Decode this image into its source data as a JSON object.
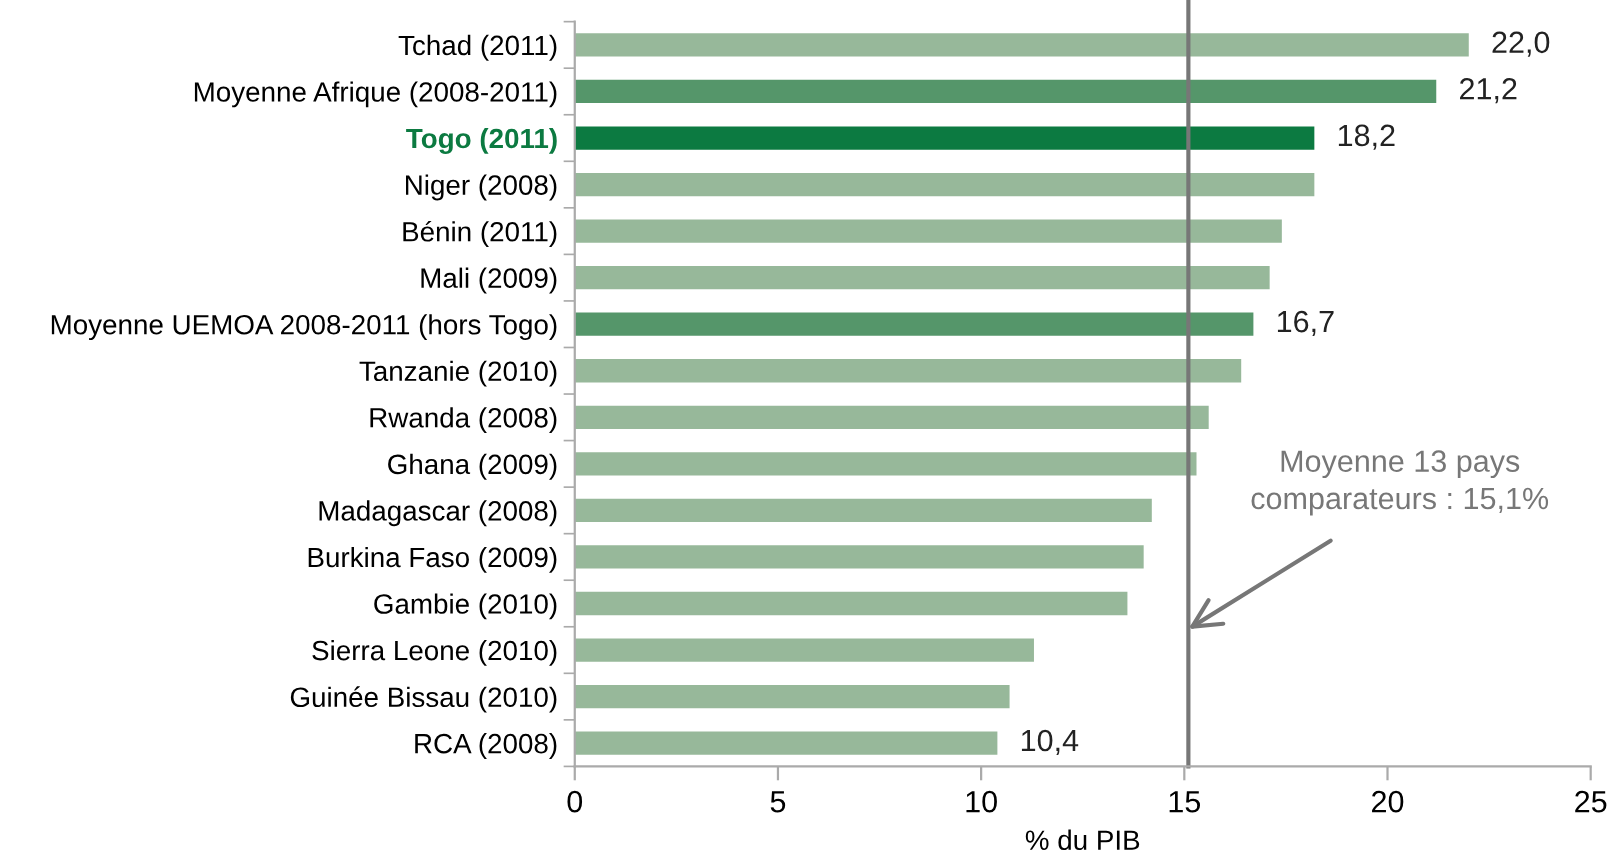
{
  "chart_data": {
    "type": "bar",
    "orientation": "horizontal",
    "xlabel": "% du PIB",
    "categories": [
      "Tchad (2011)",
      "Moyenne Afrique (2008-2011)",
      "Togo (2011)",
      "Niger (2008)",
      "Bénin (2011)",
      "Mali (2009)",
      "Moyenne UEMOA 2008-2011 (hors Togo)",
      "Tanzanie (2010)",
      "Rwanda (2008)",
      "Ghana (2009)",
      "Madagascar (2008)",
      "Burkina Faso (2009)",
      "Gambie (2010)",
      "Sierra Leone (2010)",
      "Guinée Bissau (2010)",
      "RCA (2008)"
    ],
    "values": [
      22.0,
      21.2,
      18.2,
      18.2,
      17.4,
      17.1,
      16.7,
      16.4,
      15.6,
      15.3,
      14.2,
      14.0,
      13.6,
      11.3,
      10.7,
      10.4
    ],
    "colors": [
      "#97b89a",
      "#55966a",
      "#0c7a41",
      "#97b89a",
      "#97b89a",
      "#97b89a",
      "#55966a",
      "#97b89a",
      "#97b89a",
      "#97b89a",
      "#97b89a",
      "#97b89a",
      "#97b89a",
      "#97b89a",
      "#97b89a",
      "#97b89a"
    ],
    "value_labels": [
      "22,0",
      "21,2",
      "18,2",
      null,
      null,
      null,
      "16,7",
      null,
      null,
      null,
      null,
      null,
      null,
      null,
      null,
      "10,4"
    ],
    "xlim": [
      0,
      25
    ],
    "xticks": [
      0,
      5,
      10,
      15,
      20,
      25
    ],
    "grid": false,
    "legend": false,
    "ref_lines": [
      {
        "axis": "x",
        "value": 15.1,
        "label": "Moyenne 13 pays comparateurs : 15,1%",
        "color": "#777777"
      }
    ]
  }
}
